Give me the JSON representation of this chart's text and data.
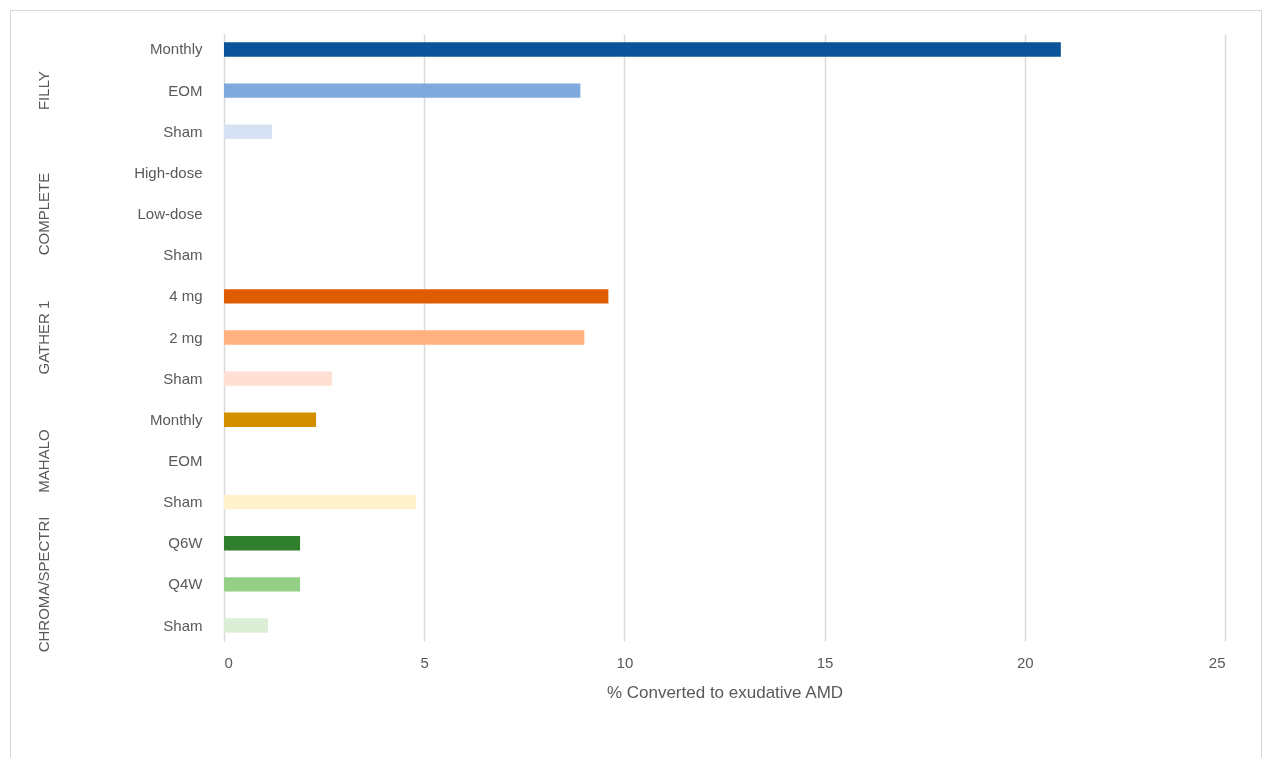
{
  "chart_data": {
    "type": "bar",
    "orientation": "horizontal",
    "xlabel": "% Converted to exudative AMD",
    "categories": [
      "Monthly",
      "EOM",
      "Sham",
      "High-dose",
      "Low-dose",
      "Sham",
      "4 mg",
      "2 mg",
      "Sham",
      "Monthly",
      "EOM",
      "Sham",
      "Q6W",
      "Q4W",
      "Sham"
    ],
    "values": [
      20.9,
      8.9,
      1.2,
      null,
      null,
      null,
      9.6,
      9.0,
      2.7,
      2.3,
      null,
      4.8,
      1.9,
      1.9,
      1.1
    ],
    "colors": [
      "#0b5398",
      "#7fa8dc",
      "#d6e2f3",
      null,
      null,
      null,
      "#e05c00",
      "#ffb17f",
      "#ffe0d2",
      "#d38f00",
      null,
      "#fff1cb",
      "#2f7f2f",
      "#93cf84",
      "#dcefd6"
    ],
    "annotations": [
      "FILLY",
      "COMPLETE",
      "GATHER 1",
      "MAHALO",
      "CHROMA/SPECTRI"
    ],
    "xlim": [
      0,
      25
    ],
    "xticks": [
      0,
      5,
      10,
      15,
      20,
      25
    ],
    "grid": "x"
  }
}
